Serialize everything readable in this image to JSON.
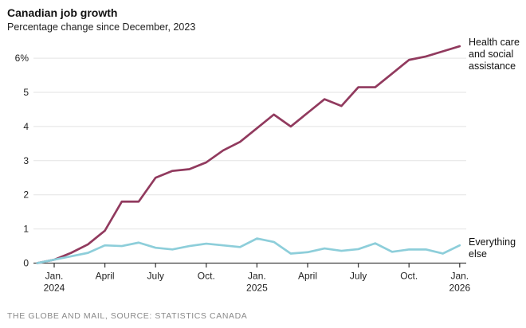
{
  "header": {
    "title": "Canadian job growth",
    "subtitle": "Percentage change since December, 2023"
  },
  "chart_data": {
    "type": "line",
    "title": "Canadian job growth",
    "subtitle": "Percentage change since December, 2023",
    "x_unit": "month",
    "grid": "horizontal",
    "legend_position": "right-of-line-ends",
    "ylim": [
      0,
      6.5
    ],
    "months": [
      "Dec. 2023",
      "Jan. 2024",
      "Feb. 2024",
      "Mar. 2024",
      "Apr. 2024",
      "May 2024",
      "June 2024",
      "July 2024",
      "Aug. 2024",
      "Sep. 2024",
      "Oct. 2024",
      "Nov. 2024",
      "Dec. 2024",
      "Jan. 2025",
      "Feb. 2025",
      "Mar. 2025",
      "Apr. 2025",
      "May 2025",
      "June 2025",
      "July 2025",
      "Aug. 2025",
      "Sep. 2025",
      "Oct. 2025",
      "Nov. 2025",
      "Dec. 2025",
      "Jan. 2026"
    ],
    "series": [
      {
        "name": "Health care and social assistance",
        "color": "#913A5E",
        "values": [
          0,
          0.1,
          0.3,
          0.55,
          0.95,
          1.8,
          1.8,
          2.5,
          2.7,
          2.75,
          2.95,
          3.3,
          3.55,
          3.95,
          4.35,
          4.0,
          4.4,
          4.8,
          4.6,
          5.15,
          5.15,
          5.55,
          5.95,
          6.05,
          6.2,
          6.35
        ]
      },
      {
        "name": "Everything else",
        "color": "#8DCEDA",
        "values": [
          0,
          0.1,
          0.2,
          0.3,
          0.52,
          0.5,
          0.6,
          0.45,
          0.4,
          0.5,
          0.57,
          0.52,
          0.47,
          0.72,
          0.62,
          0.28,
          0.32,
          0.43,
          0.36,
          0.41,
          0.58,
          0.33,
          0.4,
          0.4,
          0.28,
          0.52
        ]
      }
    ],
    "x_ticks": [
      {
        "index": 1,
        "label": "Jan.",
        "sublabel": "2024"
      },
      {
        "index": 4,
        "label": "April"
      },
      {
        "index": 7,
        "label": "July"
      },
      {
        "index": 10,
        "label": "Oct."
      },
      {
        "index": 13,
        "label": "Jan.",
        "sublabel": "2025"
      },
      {
        "index": 16,
        "label": "April"
      },
      {
        "index": 19,
        "label": "July"
      },
      {
        "index": 22,
        "label": "Oct."
      },
      {
        "index": 25,
        "label": "Jan.",
        "sublabel": "2026"
      }
    ],
    "y_ticks": [
      {
        "value": 0,
        "label": "0"
      },
      {
        "value": 1,
        "label": "1"
      },
      {
        "value": 2,
        "label": "2"
      },
      {
        "value": 3,
        "label": "3"
      },
      {
        "value": 4,
        "label": "4"
      },
      {
        "value": 5,
        "label": "5"
      },
      {
        "value": 6,
        "label": "6%"
      }
    ],
    "colors": {
      "gridline": "#e3e3e3",
      "axis": "#404040",
      "text": "#222222",
      "health_line": "#913A5E",
      "everything_line": "#8DCEDA"
    }
  },
  "footer": {
    "credit": "THE GLOBE AND MAIL, SOURCE: STATISTICS CANADA"
  }
}
